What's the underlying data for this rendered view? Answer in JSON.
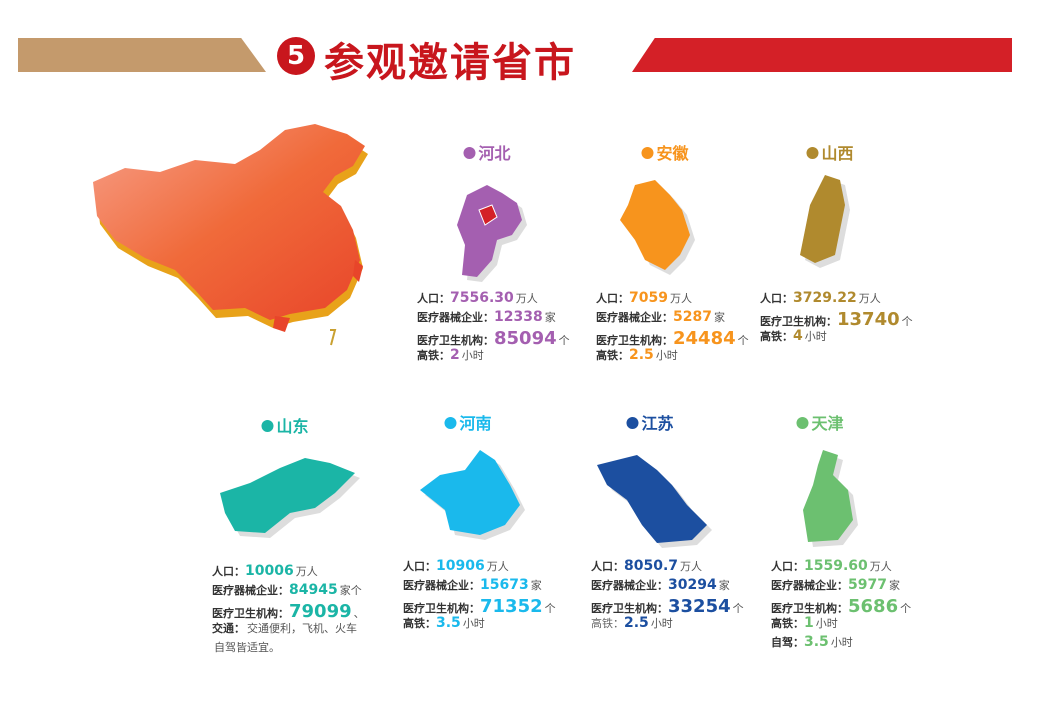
{
  "header": {
    "number": "5",
    "title": "参观邀请省市",
    "colors": {
      "left_bar": "#c49a6c",
      "right_bar": "#d42027",
      "title": "#c8161d"
    }
  },
  "china_map": {
    "icon": "china-3d-map",
    "color": "#f0602a"
  },
  "provinces": [
    {
      "name": "河北",
      "color": "#a45fb0",
      "lines": [
        {
          "label": "人口：",
          "value": "7556.30",
          "unit": "万人"
        },
        {
          "label": "医疗器械企业：",
          "value": "12338",
          "unit": "家"
        },
        {
          "label": "医疗卫生机构：",
          "value": "85094",
          "unit": "个",
          "big": true
        },
        {
          "label": "高铁：",
          "value": "2",
          "unit": "小时"
        }
      ]
    },
    {
      "name": "安徽",
      "color": "#f7941d",
      "lines": [
        {
          "label": "人口：",
          "value": "7059",
          "unit": "万人"
        },
        {
          "label": "医疗器械企业：",
          "value": "5287",
          "unit": "家"
        },
        {
          "label": "医疗卫生机构：",
          "value": "24484",
          "unit": "个",
          "big": true
        },
        {
          "label": "高铁：",
          "value": "2.5",
          "unit": "小时"
        }
      ]
    },
    {
      "name": "山西",
      "color": "#b08a2e",
      "lines": [
        {
          "label": "人口：",
          "value": "3729.22",
          "unit": "万人"
        },
        {
          "label": "医疗卫生机构：",
          "value": "13740",
          "unit": "个",
          "big": true
        },
        {
          "label": "高铁：",
          "value": "4",
          "unit": "小时"
        }
      ]
    },
    {
      "name": "山东",
      "color": "#1bb5a6",
      "lines": [
        {
          "label": "人口：",
          "value": "10006",
          "unit": "万人"
        },
        {
          "label": "医疗器械企业：",
          "value": "84945",
          "unit": "家个"
        },
        {
          "label": "医疗卫生机构：",
          "value": "79099",
          "unit": "、",
          "big": true
        },
        {
          "label": "交通：",
          "value": "",
          "unit": "交通便利，飞机、火车"
        },
        {
          "label": "",
          "value": "",
          "unit": "自驾皆适宜。"
        }
      ]
    },
    {
      "name": "河南",
      "color": "#1ab9ec",
      "lines": [
        {
          "label": "人口：",
          "value": "10906",
          "unit": "万人"
        },
        {
          "label": "医疗器械企业：",
          "value": "15673",
          "unit": "家"
        },
        {
          "label": "医疗卫生机构：",
          "value": "71352",
          "unit": "个",
          "big": true
        },
        {
          "label": "高铁：",
          "value": "3.5",
          "unit": "小时"
        }
      ]
    },
    {
      "name": "江苏",
      "color": "#1c4fa0",
      "lines": [
        {
          "label": "人口：",
          "value": "8050.7",
          "unit": "万人"
        },
        {
          "label": "医疗器械企业：",
          "value": "30294",
          "unit": "家"
        },
        {
          "label": "医疗卫生机构：",
          "value": "33254",
          "unit": "个",
          "big": true
        },
        {
          "label": "高铁：",
          "value": "2.5",
          "unit": "小时",
          "light": true
        }
      ]
    },
    {
      "name": "天津",
      "color": "#6cc070",
      "lines": [
        {
          "label": "人口：",
          "value": "1559.60",
          "unit": "万人"
        },
        {
          "label": "医疗器械企业：",
          "value": "5977",
          "unit": "家"
        },
        {
          "label": "医疗卫生机构：",
          "value": "5686",
          "unit": "个",
          "big": true
        },
        {
          "label": "高铁：",
          "value": "1",
          "unit": "小时"
        },
        {
          "label": "自驾：",
          "value": "3.5",
          "unit": "小时"
        }
      ]
    }
  ]
}
